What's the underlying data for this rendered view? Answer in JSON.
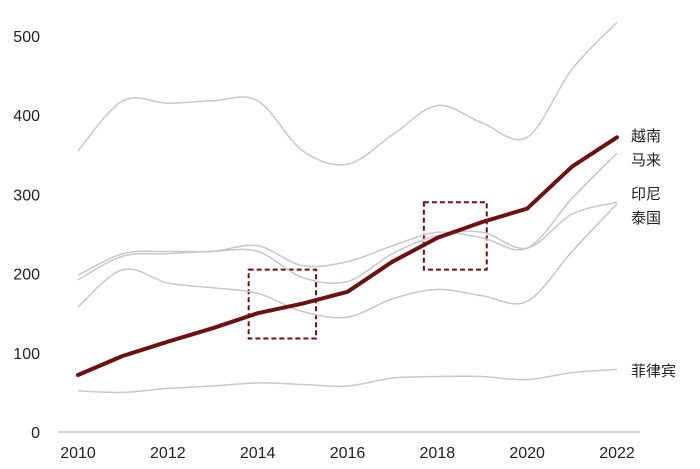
{
  "chart_data": {
    "type": "line",
    "title": "",
    "xlabel": "",
    "ylabel": "",
    "xlim": [
      2010,
      2022
    ],
    "ylim": [
      0,
      520
    ],
    "grid": false,
    "x_ticks": [
      "2010",
      "2012",
      "2014",
      "2016",
      "2018",
      "2020",
      "2022"
    ],
    "y_ticks": [
      "0",
      "100",
      "200",
      "300",
      "400",
      "500"
    ],
    "series": [
      {
        "name": "",
        "role": "highlight",
        "color": "#6b1111",
        "x": [
          2010,
          2011,
          2012,
          2013,
          2014,
          2015,
          2016,
          2017,
          2018,
          2019,
          2020,
          2021,
          2022
        ],
        "y": [
          72,
          96,
          114,
          131,
          150,
          162,
          177,
          215,
          245,
          265,
          282,
          335,
          372
        ]
      },
      {
        "name": "越南",
        "color": "#c8c8c8",
        "x": [
          2010,
          2011,
          2012,
          2013,
          2014,
          2015,
          2016,
          2017,
          2018,
          2019,
          2020,
          2021,
          2022
        ],
        "y": [
          355,
          418,
          415,
          418,
          418,
          355,
          338,
          375,
          412,
          390,
          372,
          458,
          517
        ]
      },
      {
        "name": "马来",
        "color": "#c8c8c8",
        "x": [
          2010,
          2011,
          2012,
          2013,
          2014,
          2015,
          2016,
          2017,
          2018,
          2019,
          2020,
          2021,
          2022
        ],
        "y": [
          198,
          225,
          228,
          228,
          235,
          210,
          215,
          235,
          252,
          245,
          232,
          295,
          352
        ]
      },
      {
        "name": "印尼",
        "color": "#c8c8c8",
        "x": [
          2010,
          2011,
          2012,
          2013,
          2014,
          2015,
          2016,
          2017,
          2018,
          2019,
          2020,
          2021,
          2022
        ],
        "y": [
          192,
          222,
          225,
          228,
          228,
          195,
          190,
          225,
          248,
          252,
          232,
          275,
          290
        ]
      },
      {
        "name": "泰国",
        "color": "#c8c8c8",
        "x": [
          2010,
          2011,
          2012,
          2013,
          2014,
          2015,
          2016,
          2017,
          2018,
          2019,
          2020,
          2021,
          2022
        ],
        "y": [
          158,
          205,
          188,
          182,
          175,
          152,
          145,
          168,
          180,
          172,
          165,
          228,
          288
        ]
      },
      {
        "name": "菲律宾",
        "color": "#c8c8c8",
        "x": [
          2010,
          2011,
          2012,
          2013,
          2014,
          2015,
          2016,
          2017,
          2018,
          2019,
          2020,
          2021,
          2022
        ],
        "y": [
          52,
          50,
          55,
          58,
          62,
          60,
          58,
          68,
          70,
          70,
          66,
          75,
          79
        ]
      }
    ],
    "annotations": [
      {
        "type": "dashed-box",
        "color": "#6b1111",
        "x_range": [
          2013.8,
          2015.3
        ],
        "y_range": [
          118,
          205
        ]
      },
      {
        "type": "dashed-box",
        "color": "#6b1111",
        "x_range": [
          2017.7,
          2019.1
        ],
        "y_range": [
          205,
          290
        ]
      }
    ],
    "legend": "right-end labels"
  }
}
